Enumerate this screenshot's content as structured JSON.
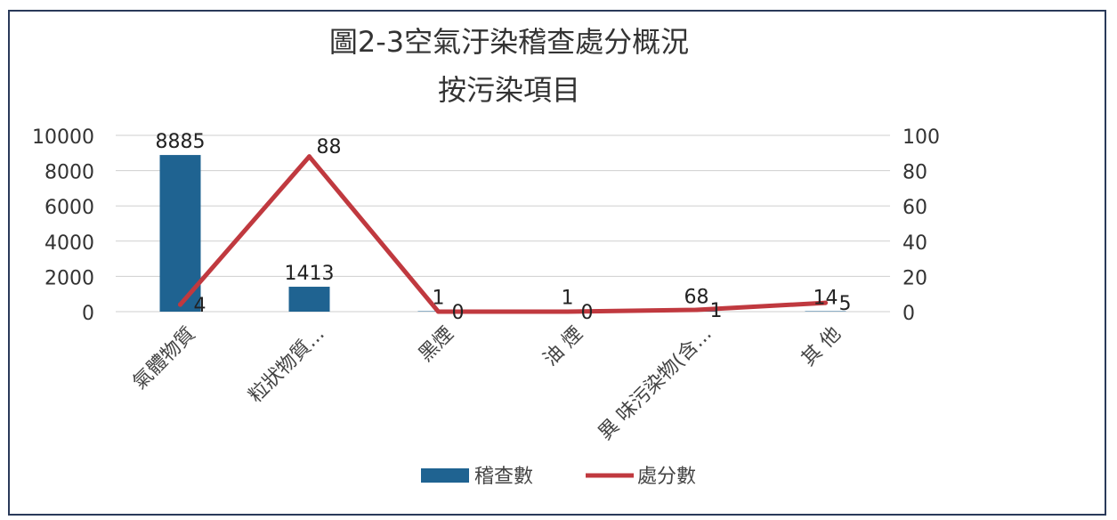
{
  "chart_data": {
    "type": "bar",
    "title": [
      "圖2-3空氣汙染稽查處分概況",
      "按污染項目"
    ],
    "categories": [
      "氣體物質",
      "粒狀物質...",
      "黑煙",
      "油 煙",
      "異 味污染物(含...",
      "其 他"
    ],
    "series": [
      {
        "name": "稽查數",
        "type": "bar",
        "axis": "left",
        "color": "#1f6391",
        "values": [
          8885,
          1413,
          1,
          1,
          68,
          14
        ],
        "labels": [
          "8885",
          "1413",
          "1",
          "1",
          "68",
          "14"
        ]
      },
      {
        "name": "處分數",
        "type": "line",
        "axis": "right",
        "color": "#c0393f",
        "values": [
          4,
          88,
          0,
          0,
          1,
          5
        ],
        "labels": [
          "4",
          "88",
          "0",
          "0",
          "1",
          "5"
        ]
      }
    ],
    "y_left": {
      "min": 0,
      "max": 10000,
      "ticks": [
        "0",
        "2000",
        "4000",
        "6000",
        "8000",
        "10000"
      ]
    },
    "y_right": {
      "min": 0,
      "max": 100,
      "ticks": [
        "0",
        "20",
        "40",
        "60",
        "80",
        "100"
      ]
    },
    "grid": true,
    "legend_position": "bottom"
  }
}
